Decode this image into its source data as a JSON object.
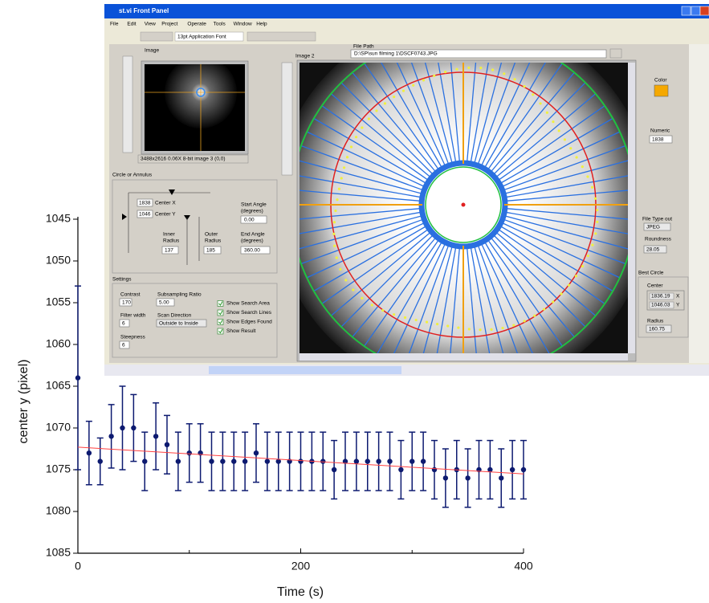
{
  "chart_data": {
    "type": "scatter",
    "xlabel": "Time (s)",
    "ylabel": "center y (pixel)",
    "x": [
      0,
      10,
      20,
      30,
      40,
      50,
      60,
      70,
      80,
      90,
      100,
      110,
      120,
      130,
      140,
      150,
      160,
      170,
      180,
      190,
      200,
      210,
      220,
      230,
      240,
      250,
      260,
      270,
      280,
      290,
      300,
      310,
      320,
      330,
      340,
      350,
      360,
      370,
      380,
      390,
      400
    ],
    "series": [
      {
        "color": "#0d1a70",
        "values": [
          1064,
          1073,
          1074,
          1071,
          1070,
          1070,
          1074,
          1071,
          1072,
          1074,
          1073,
          1073,
          1074,
          1074,
          1074,
          1074,
          1073,
          1074,
          1074,
          1074,
          1074,
          1074,
          1074,
          1075,
          1074,
          1074,
          1074,
          1074,
          1074,
          1075,
          1074,
          1074,
          1075,
          1076,
          1075,
          1076,
          1075,
          1075,
          1076,
          1075,
          1075
        ],
        "errors": [
          11,
          3.8,
          2.8,
          3.8,
          5,
          4,
          3.5,
          4,
          3.5,
          3.5,
          3.5,
          3.5,
          3.5,
          3.5,
          3.5,
          3.5,
          3.5,
          3.5,
          3.5,
          3.5,
          3.5,
          3.5,
          3.5,
          3.5,
          3.5,
          3.5,
          3.5,
          3.5,
          3.5,
          3.5,
          3.5,
          3.5,
          3.5,
          3.5,
          3.5,
          3.5,
          3.5,
          3.5,
          3.5,
          3.5,
          3.5
        ]
      }
    ],
    "fit": {
      "x": [
        0,
        400
      ],
      "values": [
        1072.3,
        1075.5
      ],
      "color": "#ff4040"
    },
    "xlim": [
      0,
      400
    ],
    "xticks": [
      0,
      200,
      400
    ],
    "xminor": [
      100,
      300
    ],
    "ylim": [
      1045,
      1085
    ],
    "yticks": [
      1045,
      1050,
      1055,
      1060,
      1065,
      1070,
      1075,
      1080,
      1085
    ],
    "y_inverted": true
  },
  "screenshot": {
    "title": "st.vi Front Panel",
    "menu": [
      "File",
      "Edit",
      "View",
      "Project",
      "Operate",
      "Tools",
      "Window",
      "Help"
    ],
    "font": "13pt Application Font",
    "image_label": "Image",
    "image_info": "3488x2616 0.06X 8-bit image 3    (0,0)",
    "image2_label": "Image 2",
    "file_path_label": "File Path",
    "file_path": "D:\\SP\\sun filming 1\\DSCF0743.JPG",
    "circle": {
      "title": "Circle or Annulus",
      "center_x_label": "Center X",
      "center_x": "1838",
      "center_y_label": "Center Y",
      "center_y": "1046",
      "start_angle_label": [
        "Start Angle",
        "(degrees)"
      ],
      "start_angle": "0.00",
      "inner_radius_label": [
        "Inner",
        "Radius"
      ],
      "inner_radius": "137",
      "outer_radius_label": [
        "Outer",
        "Radius"
      ],
      "outer_radius": "185",
      "end_angle_label": [
        "End Angle",
        "(degrees)"
      ],
      "end_angle": "360.00"
    },
    "settings": {
      "title": "Settings",
      "contrast_label": "Contrast",
      "contrast": "170",
      "subsampling_label": "Subsampling Ratio",
      "subsampling": "5.00",
      "filter_label": "Filter width",
      "filter": "6",
      "scan_label": "Scan Direction",
      "scan": "Outside to Inside",
      "steepness_label": "Steepness",
      "steepness": "6",
      "checks": [
        "Show Search Area",
        "Show Search Lines",
        "Show Edges Found",
        "Show Result"
      ]
    },
    "color_label": "Color",
    "numeric_label": "Numeric",
    "numeric": "1838",
    "file_type_label": "File Type out",
    "file_type": "JPEG",
    "roundness_label": "Roundness",
    "roundness": "28.05",
    "best_circle": {
      "title": "Best Circle",
      "center_label": "Center",
      "x": "1836.19",
      "x_label": "X",
      "y": "1046.03",
      "y_label": "Y",
      "radius_label": "Radius",
      "radius": "160.75"
    }
  }
}
